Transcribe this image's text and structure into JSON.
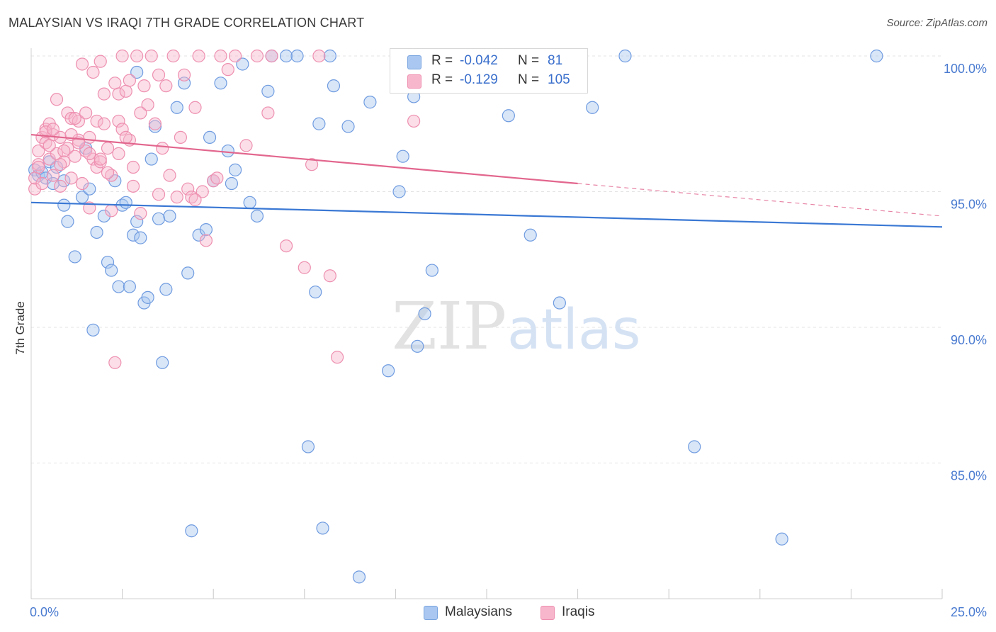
{
  "title": "MALAYSIAN VS IRAQI 7TH GRADE CORRELATION CHART",
  "source": "Source: ZipAtlas.com",
  "watermark": {
    "zip": "ZIP",
    "atlas": "atlas"
  },
  "legend": {
    "rows": [
      {
        "r_key": "R =",
        "r_value": "-0.042",
        "n_key": "N =",
        "n_value": "81",
        "color": "#a9c7f0",
        "border": "#7aa5e0"
      },
      {
        "r_key": "R =",
        "r_value": "-0.129",
        "n_key": "N = ",
        "n_value": "105",
        "color": "#f7b6cb",
        "border": "#ee8fb0"
      }
    ]
  },
  "bottom_legend": [
    {
      "label": "Malaysians",
      "color": "#a9c7f0",
      "border": "#7aa5e0"
    },
    {
      "label": "Iraqis",
      "color": "#f7b6cb",
      "border": "#ee8fb0"
    }
  ],
  "chart_data": {
    "type": "scatter",
    "title": "MALAYSIAN VS IRAQI 7TH GRADE CORRELATION CHART",
    "xlabel": "",
    "ylabel": "7th Grade",
    "xlim": [
      0,
      25
    ],
    "ylim": [
      80.5,
      100.5
    ],
    "x_tick_labels": [
      {
        "value": 0,
        "label": "0.0%"
      },
      {
        "value": 25,
        "label": "25.0%"
      }
    ],
    "y_tick_labels": [
      {
        "value": 100,
        "label": "100.0%"
      },
      {
        "value": 95,
        "label": "95.0%"
      },
      {
        "value": 90,
        "label": "90.0%"
      },
      {
        "value": 85,
        "label": "85.0%"
      }
    ],
    "grid": true,
    "series": [
      {
        "name": "Malaysians",
        "color": "#3a78d4",
        "fill": "rgba(169,199,240,0.45)",
        "stroke": "#6f9be0",
        "trend": {
          "x0": 0,
          "y0": 94.6,
          "x1": 25,
          "y1": 93.7,
          "dashed_from": null
        },
        "points": [
          [
            0.1,
            95.8
          ],
          [
            0.2,
            95.6
          ],
          [
            0.3,
            95.7
          ],
          [
            0.4,
            95.5
          ],
          [
            0.5,
            96.1
          ],
          [
            0.6,
            95.3
          ],
          [
            0.7,
            95.9
          ],
          [
            0.9,
            95.4
          ],
          [
            0.9,
            94.5
          ],
          [
            1.0,
            93.9
          ],
          [
            1.2,
            92.6
          ],
          [
            1.4,
            94.8
          ],
          [
            1.6,
            95.1
          ],
          [
            1.8,
            93.5
          ],
          [
            2.0,
            94.1
          ],
          [
            2.1,
            92.4
          ],
          [
            2.2,
            92.1
          ],
          [
            1.7,
            89.9
          ],
          [
            2.3,
            95.4
          ],
          [
            2.4,
            91.5
          ],
          [
            2.5,
            94.5
          ],
          [
            2.6,
            94.6
          ],
          [
            2.7,
            91.5
          ],
          [
            2.8,
            93.4
          ],
          [
            2.9,
            93.9
          ],
          [
            3.0,
            93.3
          ],
          [
            3.1,
            90.9
          ],
          [
            3.2,
            91.1
          ],
          [
            3.3,
            96.2
          ],
          [
            3.4,
            97.4
          ],
          [
            3.5,
            94.0
          ],
          [
            3.6,
            88.7
          ],
          [
            3.7,
            91.4
          ],
          [
            4.0,
            98.1
          ],
          [
            4.2,
            99.0
          ],
          [
            4.3,
            92.0
          ],
          [
            4.6,
            93.4
          ],
          [
            4.8,
            93.6
          ],
          [
            4.9,
            97.0
          ],
          [
            5.0,
            95.4
          ],
          [
            5.2,
            99.0
          ],
          [
            5.4,
            96.5
          ],
          [
            5.5,
            95.3
          ],
          [
            5.6,
            95.8
          ],
          [
            5.8,
            99.7
          ],
          [
            6.0,
            94.6
          ],
          [
            6.2,
            94.1
          ],
          [
            6.5,
            98.7
          ],
          [
            6.6,
            100.0
          ],
          [
            7.0,
            100.0
          ],
          [
            7.3,
            100.0
          ],
          [
            7.6,
            85.6
          ],
          [
            7.8,
            91.3
          ],
          [
            7.9,
            97.5
          ],
          [
            8.0,
            82.6
          ],
          [
            8.2,
            100.0
          ],
          [
            8.3,
            98.9
          ],
          [
            8.7,
            97.4
          ],
          [
            9.0,
            80.8
          ],
          [
            9.3,
            98.3
          ],
          [
            9.8,
            88.4
          ],
          [
            10.1,
            95.0
          ],
          [
            10.2,
            96.3
          ],
          [
            10.5,
            98.5
          ],
          [
            10.6,
            89.3
          ],
          [
            10.8,
            90.5
          ],
          [
            11.0,
            92.1
          ],
          [
            11.5,
            100.0
          ],
          [
            13.1,
            97.8
          ],
          [
            13.7,
            93.4
          ],
          [
            14.0,
            100.0
          ],
          [
            14.5,
            90.9
          ],
          [
            15.4,
            98.1
          ],
          [
            16.3,
            100.0
          ],
          [
            18.2,
            85.6
          ],
          [
            20.6,
            82.2
          ],
          [
            23.2,
            100.0
          ],
          [
            4.4,
            82.5
          ],
          [
            3.8,
            94.1
          ],
          [
            1.5,
            96.6
          ],
          [
            2.9,
            99.4
          ]
        ]
      },
      {
        "name": "Iraqis",
        "color": "#e2668e",
        "fill": "rgba(247,182,203,0.45)",
        "stroke": "#ee8fb0",
        "trend": {
          "x0": 0,
          "y0": 97.1,
          "x1": 25,
          "y1": 94.1,
          "dashed_from": 15.0
        },
        "points": [
          [
            0.1,
            95.1
          ],
          [
            0.1,
            95.5
          ],
          [
            0.2,
            96.0
          ],
          [
            0.2,
            96.5
          ],
          [
            0.3,
            97.0
          ],
          [
            0.3,
            95.3
          ],
          [
            0.4,
            96.8
          ],
          [
            0.4,
            97.3
          ],
          [
            0.5,
            96.2
          ],
          [
            0.5,
            97.5
          ],
          [
            0.6,
            97.1
          ],
          [
            0.6,
            95.6
          ],
          [
            0.7,
            98.4
          ],
          [
            0.7,
            96.4
          ],
          [
            0.8,
            97.0
          ],
          [
            0.8,
            95.2
          ],
          [
            0.9,
            96.1
          ],
          [
            1.0,
            97.9
          ],
          [
            1.0,
            96.6
          ],
          [
            1.1,
            95.5
          ],
          [
            1.1,
            97.7
          ],
          [
            1.2,
            96.3
          ],
          [
            1.3,
            97.6
          ],
          [
            1.3,
            96.9
          ],
          [
            1.4,
            99.7
          ],
          [
            1.4,
            95.3
          ],
          [
            1.5,
            96.5
          ],
          [
            1.5,
            97.9
          ],
          [
            1.6,
            94.4
          ],
          [
            1.6,
            97.0
          ],
          [
            1.7,
            96.2
          ],
          [
            1.7,
            99.4
          ],
          [
            1.8,
            97.6
          ],
          [
            1.8,
            95.9
          ],
          [
            1.9,
            99.8
          ],
          [
            1.9,
            96.1
          ],
          [
            2.0,
            98.6
          ],
          [
            2.0,
            97.5
          ],
          [
            2.1,
            96.6
          ],
          [
            2.2,
            95.6
          ],
          [
            2.2,
            94.3
          ],
          [
            2.3,
            99.0
          ],
          [
            2.4,
            98.6
          ],
          [
            2.4,
            97.6
          ],
          [
            2.5,
            100.0
          ],
          [
            2.5,
            97.3
          ],
          [
            2.6,
            98.7
          ],
          [
            2.7,
            96.9
          ],
          [
            2.7,
            99.1
          ],
          [
            2.8,
            95.9
          ],
          [
            2.8,
            95.2
          ],
          [
            2.9,
            100.0
          ],
          [
            3.0,
            94.2
          ],
          [
            3.1,
            98.9
          ],
          [
            3.2,
            98.2
          ],
          [
            3.3,
            100.0
          ],
          [
            3.4,
            97.5
          ],
          [
            3.5,
            99.3
          ],
          [
            3.6,
            96.6
          ],
          [
            3.7,
            98.9
          ],
          [
            3.8,
            95.6
          ],
          [
            3.9,
            100.0
          ],
          [
            4.0,
            94.8
          ],
          [
            4.2,
            99.3
          ],
          [
            4.3,
            95.1
          ],
          [
            4.4,
            94.8
          ],
          [
            4.5,
            98.1
          ],
          [
            4.6,
            100.0
          ],
          [
            4.7,
            95.0
          ],
          [
            4.8,
            93.2
          ],
          [
            5.0,
            95.4
          ],
          [
            5.2,
            100.0
          ],
          [
            5.4,
            99.5
          ],
          [
            5.6,
            100.0
          ],
          [
            5.9,
            96.7
          ],
          [
            6.2,
            100.0
          ],
          [
            6.5,
            97.9
          ],
          [
            6.6,
            100.0
          ],
          [
            7.0,
            93.0
          ],
          [
            7.5,
            92.2
          ],
          [
            7.7,
            96.0
          ],
          [
            7.9,
            100.0
          ],
          [
            8.2,
            91.9
          ],
          [
            8.4,
            88.9
          ],
          [
            10.5,
            97.6
          ],
          [
            2.3,
            88.7
          ],
          [
            1.2,
            97.7
          ],
          [
            0.5,
            96.7
          ],
          [
            0.9,
            96.5
          ],
          [
            1.9,
            96.2
          ],
          [
            2.6,
            97.0
          ],
          [
            3.5,
            94.9
          ],
          [
            4.5,
            94.7
          ],
          [
            1.1,
            97.1
          ],
          [
            0.4,
            97.2
          ],
          [
            0.6,
            97.3
          ],
          [
            1.3,
            96.8
          ],
          [
            2.1,
            95.7
          ],
          [
            3.0,
            97.9
          ],
          [
            4.1,
            97.0
          ],
          [
            5.1,
            95.5
          ],
          [
            0.2,
            95.9
          ],
          [
            0.8,
            96.0
          ],
          [
            1.6,
            96.4
          ],
          [
            2.4,
            96.4
          ]
        ]
      }
    ]
  }
}
